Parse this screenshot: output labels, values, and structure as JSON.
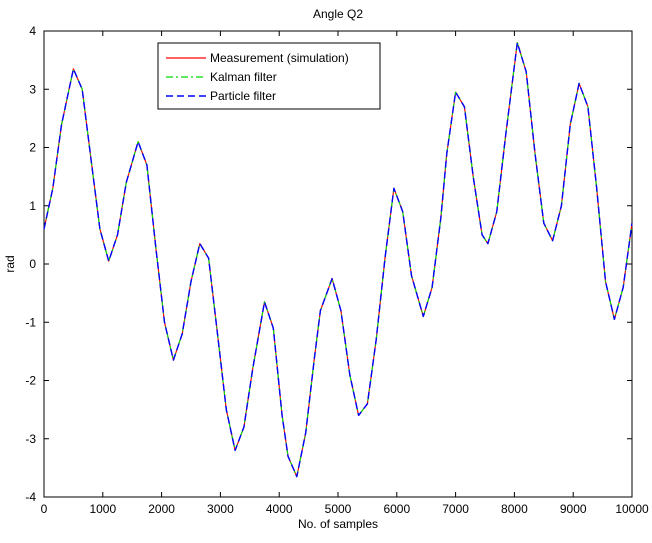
{
  "chart_data": {
    "type": "line",
    "title": "Angle Q2",
    "xlabel": "No. of samples",
    "ylabel": "rad",
    "xlim": [
      0,
      10000
    ],
    "ylim": [
      -4,
      4
    ],
    "xticks": [
      0,
      1000,
      2000,
      3000,
      4000,
      5000,
      6000,
      7000,
      8000,
      9000,
      10000
    ],
    "yticks": [
      -4,
      -3,
      -2,
      -1,
      0,
      1,
      2,
      3,
      4
    ],
    "xtick_labels": [
      "0",
      "1000",
      "2000",
      "3000",
      "4000",
      "5000",
      "6000",
      "7000",
      "8000",
      "9000",
      "10000"
    ],
    "ytick_labels": [
      "-4",
      "-3",
      "-2",
      "-1",
      "0",
      "1",
      "2",
      "3",
      "4"
    ],
    "grid": false,
    "legend_position": "top-center",
    "series": [
      {
        "name": "Measurement (simulation)",
        "color": "#ff0000",
        "style": "solid"
      },
      {
        "name": "Kalman filter",
        "color": "#00dd00",
        "style": "dashdot"
      },
      {
        "name": "Particle filter",
        "color": "#0000ff",
        "style": "dashed"
      }
    ],
    "x": [
      0,
      150,
      300,
      500,
      650,
      800,
      950,
      1100,
      1250,
      1400,
      1600,
      1750,
      1900,
      2050,
      2200,
      2350,
      2500,
      2650,
      2800,
      2950,
      3100,
      3250,
      3400,
      3550,
      3750,
      3900,
      4050,
      4150,
      4300,
      4450,
      4600,
      4700,
      4900,
      5050,
      5200,
      5350,
      5500,
      5650,
      5800,
      5950,
      6100,
      6250,
      6450,
      6600,
      6750,
      6850,
      7000,
      7150,
      7300,
      7450,
      7550,
      7700,
      7850,
      8050,
      8200,
      8350,
      8500,
      8650,
      8800,
      8950,
      9100,
      9250,
      9400,
      9550,
      9700,
      9850,
      10000
    ],
    "y": [
      0.6,
      1.3,
      2.4,
      3.35,
      3.0,
      1.8,
      0.6,
      0.05,
      0.5,
      1.4,
      2.1,
      1.7,
      0.3,
      -1.0,
      -1.65,
      -1.2,
      -0.3,
      0.35,
      0.1,
      -1.2,
      -2.5,
      -3.2,
      -2.8,
      -1.8,
      -0.65,
      -1.1,
      -2.6,
      -3.3,
      -3.65,
      -2.9,
      -1.6,
      -0.8,
      -0.25,
      -0.8,
      -1.9,
      -2.6,
      -2.4,
      -1.3,
      0.1,
      1.3,
      0.9,
      -0.2,
      -0.9,
      -0.4,
      0.8,
      1.9,
      2.95,
      2.7,
      1.5,
      0.5,
      0.35,
      0.9,
      2.2,
      3.8,
      3.3,
      1.9,
      0.7,
      0.4,
      1.0,
      2.4,
      3.1,
      2.7,
      1.3,
      -0.3,
      -0.95,
      -0.4,
      0.7
    ]
  }
}
